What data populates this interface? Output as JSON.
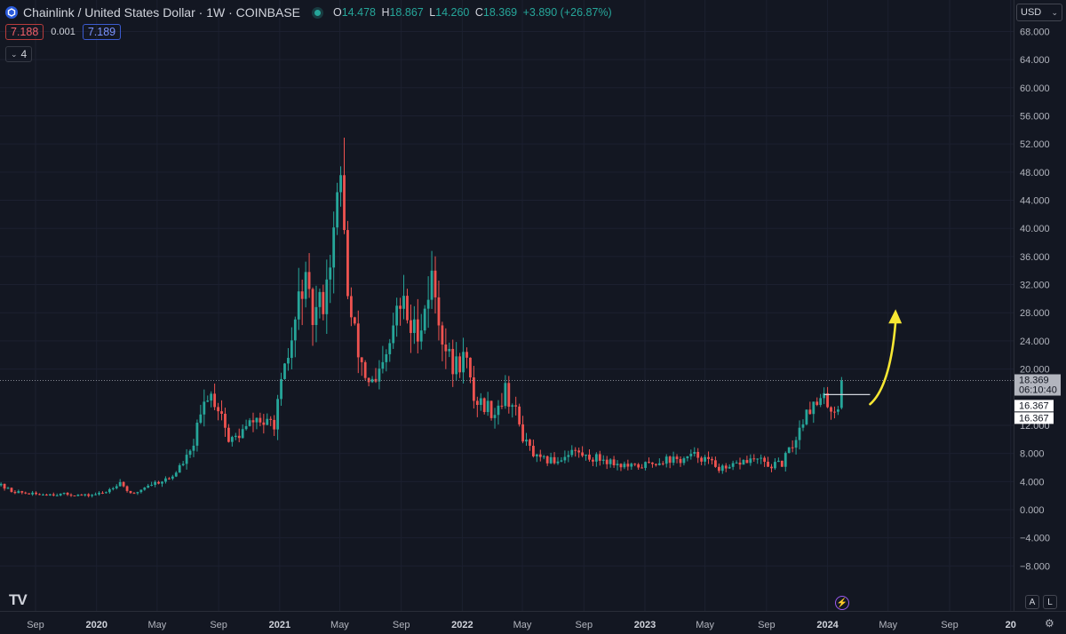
{
  "header": {
    "symbol_title": "Chainlink / United States Dollar · 1W · COINBASE",
    "ohlc": {
      "o_label": "O",
      "o": "14.478",
      "h_label": "H",
      "h": "18.867",
      "l_label": "L",
      "l": "14.260",
      "c_label": "C",
      "c": "18.369",
      "change": "+3.890 (+26.87%)"
    },
    "sell_price": "7.188",
    "spread": "0.001",
    "buy_price": "7.189",
    "indicators_count": "4"
  },
  "currency_selector": "USD",
  "price_labels": {
    "last_price": "18.369",
    "countdown": "06:10:40",
    "line_label_1": "16.367",
    "line_label_2": "16.367"
  },
  "bottom_buttons": {
    "auto": "A",
    "log": "L"
  },
  "colors": {
    "background": "#131722",
    "up": "#26a69a",
    "down": "#ef5350",
    "arrow": "#f7e733",
    "last_price_box": "#b2b5be"
  },
  "chart_data": {
    "type": "candlestick",
    "interval": "1W",
    "ylim": [
      -10,
      70
    ],
    "y_ticks": [
      "68.000",
      "64.000",
      "60.000",
      "56.000",
      "52.000",
      "48.000",
      "44.000",
      "40.000",
      "36.000",
      "32.000",
      "28.000",
      "24.000",
      "20.000",
      "12.000",
      "8.000",
      "4.000",
      "0.000",
      "−4.000",
      "−8.000"
    ],
    "y_tick_values": [
      68,
      64,
      60,
      56,
      52,
      48,
      44,
      40,
      36,
      32,
      28,
      24,
      20,
      12,
      8,
      4,
      0,
      -4,
      -8
    ],
    "x_ticks": [
      "Sep",
      "2020",
      "May",
      "Sep",
      "2021",
      "May",
      "Sep",
      "2022",
      "May",
      "Sep",
      "2023",
      "May",
      "Sep",
      "2024",
      "May",
      "Sep",
      "20"
    ],
    "x_tick_dates": [
      "2019-09-01",
      "2020-01-01",
      "2020-05-01",
      "2020-09-01",
      "2021-01-01",
      "2021-05-01",
      "2021-09-01",
      "2022-01-01",
      "2022-05-01",
      "2022-09-01",
      "2023-01-01",
      "2023-05-01",
      "2023-09-01",
      "2024-01-01",
      "2024-05-01",
      "2024-09-01",
      "2025-01-01"
    ],
    "x_tick_bold": [
      false,
      true,
      false,
      false,
      true,
      false,
      false,
      true,
      false,
      false,
      true,
      false,
      false,
      true,
      false,
      false,
      true
    ],
    "anchors": [
      [
        "2019-06-10",
        4.0
      ],
      [
        "2019-07-20",
        2.6
      ],
      [
        "2019-09-01",
        2.2
      ],
      [
        "2019-11-01",
        2.2
      ],
      [
        "2019-12-15",
        2.0
      ],
      [
        "2020-01-20",
        2.4
      ],
      [
        "2020-02-20",
        4.0
      ],
      [
        "2020-03-15",
        2.0
      ],
      [
        "2020-04-15",
        3.5
      ],
      [
        "2020-06-01",
        4.5
      ],
      [
        "2020-07-10",
        8.0
      ],
      [
        "2020-08-15",
        17.0
      ],
      [
        "2020-09-10",
        14.0
      ],
      [
        "2020-09-25",
        9.5
      ],
      [
        "2020-10-20",
        11.0
      ],
      [
        "2020-11-20",
        13.0
      ],
      [
        "2020-12-10",
        12.0
      ],
      [
        "2020-12-25",
        12.5
      ],
      [
        "2021-01-10",
        18.0
      ],
      [
        "2021-02-01",
        25.0
      ],
      [
        "2021-02-20",
        33.0
      ],
      [
        "2021-03-10",
        27.0
      ],
      [
        "2021-04-01",
        30.0
      ],
      [
        "2021-04-20",
        38.0
      ],
      [
        "2021-05-10",
        48.0
      ],
      [
        "2021-05-20",
        30.0
      ],
      [
        "2021-06-05",
        24.0
      ],
      [
        "2021-06-25",
        19.0
      ],
      [
        "2021-07-15",
        17.5
      ],
      [
        "2021-08-10",
        22.0
      ],
      [
        "2021-08-25",
        28.0
      ],
      [
        "2021-09-10",
        29.0
      ],
      [
        "2021-09-25",
        25.0
      ],
      [
        "2021-10-15",
        27.0
      ],
      [
        "2021-11-05",
        33.0
      ],
      [
        "2021-11-25",
        25.0
      ],
      [
        "2021-12-15",
        20.0
      ],
      [
        "2022-01-10",
        22.0
      ],
      [
        "2022-01-25",
        16.0
      ],
      [
        "2022-02-15",
        15.0
      ],
      [
        "2022-03-10",
        14.0
      ],
      [
        "2022-04-01",
        17.0
      ],
      [
        "2022-04-20",
        14.0
      ],
      [
        "2022-05-10",
        9.5
      ],
      [
        "2022-06-05",
        7.0
      ],
      [
        "2022-07-15",
        7.0
      ],
      [
        "2022-08-10",
        8.5
      ],
      [
        "2022-09-10",
        7.5
      ],
      [
        "2022-10-15",
        7.2
      ],
      [
        "2022-11-10",
        6.5
      ],
      [
        "2022-12-10",
        6.0
      ],
      [
        "2023-01-15",
        6.5
      ],
      [
        "2023-02-15",
        7.2
      ],
      [
        "2023-03-15",
        7.0
      ],
      [
        "2023-04-20",
        7.8
      ],
      [
        "2023-05-20",
        6.5
      ],
      [
        "2023-06-15",
        5.5
      ],
      [
        "2023-07-15",
        6.8
      ],
      [
        "2023-08-15",
        7.2
      ],
      [
        "2023-09-10",
        6.2
      ],
      [
        "2023-10-05",
        6.5
      ],
      [
        "2023-10-25",
        9.0
      ],
      [
        "2023-11-10",
        11.5
      ],
      [
        "2023-11-25",
        15.0
      ],
      [
        "2023-12-10",
        14.5
      ],
      [
        "2023-12-25",
        15.5
      ],
      [
        "2024-01-08",
        15.0
      ],
      [
        "2024-01-15",
        14.6
      ],
      [
        "2024-01-22",
        14.4
      ]
    ],
    "last_candle": {
      "date": "2024-01-29",
      "open": 14.478,
      "high": 18.867,
      "low": 14.26,
      "close": 18.369
    },
    "max_high": 52.9,
    "max_high_date": "2021-05-10",
    "last_price": 18.369,
    "horizontal_line": {
      "value": 16.367,
      "from": "2023-12-25",
      "to": "2024-03-26"
    },
    "arrow": {
      "from": [
        "2024-03-26",
        15.0
      ],
      "to": [
        "2024-05-16",
        28.5
      ]
    }
  }
}
